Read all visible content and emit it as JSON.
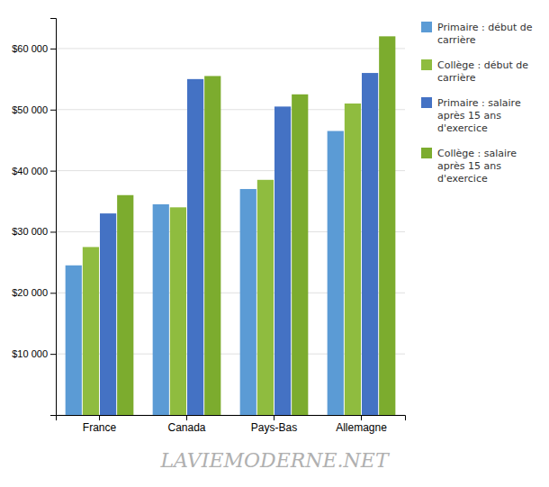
{
  "chart_data": {
    "type": "bar",
    "categories": [
      "France",
      "Canada",
      "Pays-Bas",
      "Allemagne"
    ],
    "series": [
      {
        "name": "Primaire : début de\ncarrière",
        "color": "#5b9bd5",
        "values": [
          24500,
          34500,
          37000,
          46500
        ]
      },
      {
        "name": "Collège : début de\ncarrière",
        "color": "#8fbc3f",
        "values": [
          27500,
          34000,
          38500,
          51000
        ]
      },
      {
        "name": "Primaire : salaire\naprès 15 ans\nd'exercice",
        "color": "#4472c4",
        "values": [
          33000,
          55000,
          50500,
          56000
        ]
      },
      {
        "name": "Collège : salaire\naprès 15 ans\nd'exercice",
        "color": "#7cac2e",
        "values": [
          36000,
          55500,
          52500,
          62000
        ]
      }
    ],
    "ylim": [
      0,
      65000
    ],
    "yticks": [
      {
        "value": 0,
        "label": ""
      },
      {
        "value": 10000,
        "label": "$10 000"
      },
      {
        "value": 20000,
        "label": "$20 000"
      },
      {
        "value": 30000,
        "label": "$30 000"
      },
      {
        "value": 40000,
        "label": "$40 000"
      },
      {
        "value": 50000,
        "label": "$50 000"
      },
      {
        "value": 60000,
        "label": "$60 000"
      }
    ],
    "grid": true,
    "legend": "right",
    "annotations": [
      "LAVIEMODERNE.NET"
    ]
  }
}
